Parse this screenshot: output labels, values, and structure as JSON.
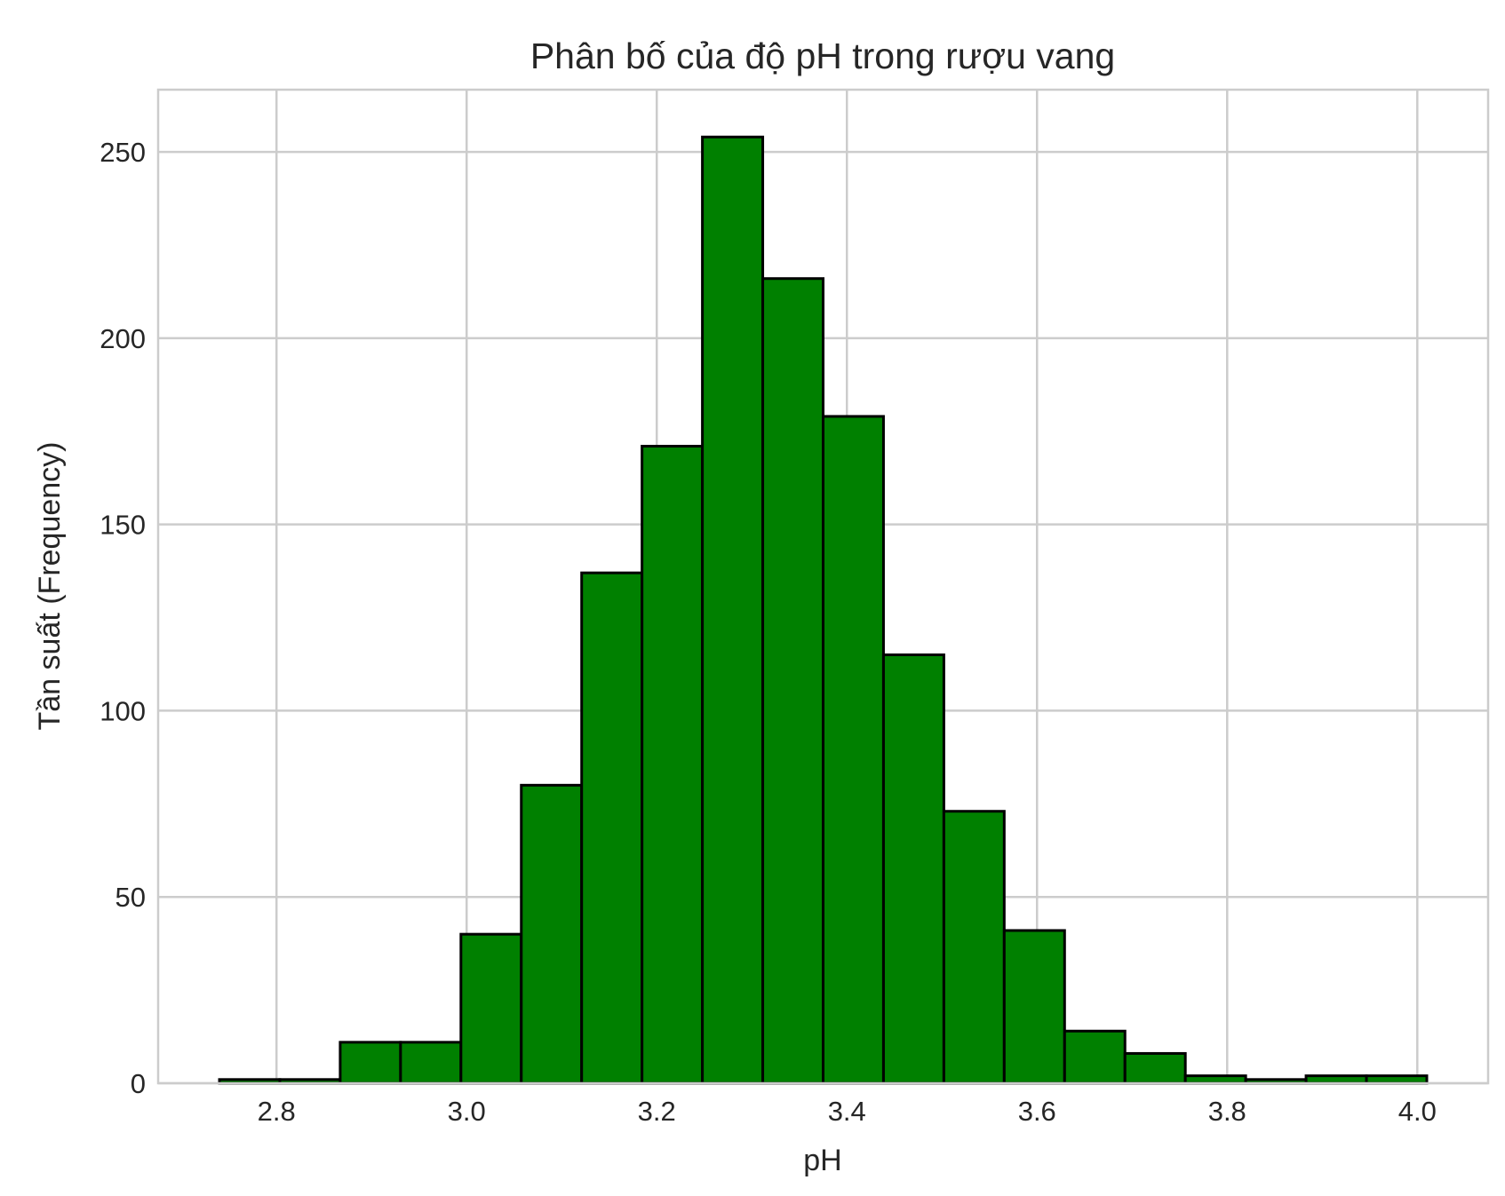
{
  "chart_data": {
    "type": "bar",
    "title": "Phân bố của độ pH trong rượu vang",
    "xlabel": "pH",
    "ylabel": "Tần suất (Frequency)",
    "xlim": [
      2.6755,
      4.0745
    ],
    "ylim": [
      0,
      266.7
    ],
    "x_ticks": [
      2.8,
      3.0,
      3.2,
      3.4,
      3.6,
      3.8,
      4.0
    ],
    "x_tick_labels": [
      "2.8",
      "3.0",
      "3.2",
      "3.4",
      "3.6",
      "3.8",
      "4.0"
    ],
    "y_ticks": [
      0,
      50,
      100,
      150,
      200,
      250
    ],
    "y_tick_labels": [
      "0",
      "50",
      "100",
      "150",
      "200",
      "250"
    ],
    "bin_edges": [
      2.74,
      2.8035,
      2.867,
      2.9305,
      2.994,
      3.0575,
      3.121,
      3.1845,
      3.248,
      3.3115,
      3.375,
      3.4385,
      3.502,
      3.5655,
      3.629,
      3.6925,
      3.756,
      3.8195,
      3.883,
      3.9465,
      4.01
    ],
    "values": [
      1,
      1,
      11,
      11,
      40,
      80,
      137,
      171,
      254,
      216,
      179,
      115,
      73,
      41,
      14,
      8,
      2,
      1,
      2,
      2
    ],
    "bar_color": "#008000",
    "edge_color": "#000000",
    "grid": true
  }
}
